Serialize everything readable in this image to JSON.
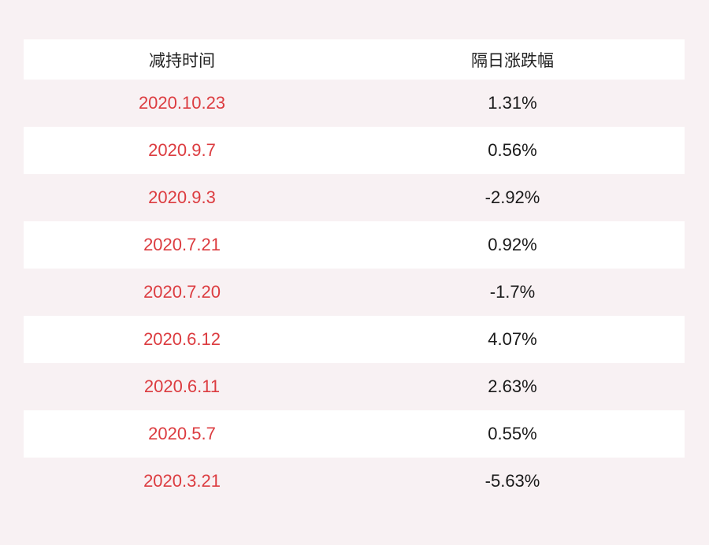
{
  "table": {
    "columns": {
      "date_label": "减持时间",
      "change_label": "隔日涨跌幅"
    },
    "rows": [
      {
        "date": "2020.10.23",
        "change": "1.31%"
      },
      {
        "date": "2020.9.7",
        "change": "0.56%"
      },
      {
        "date": "2020.9.3",
        "change": "-2.92%"
      },
      {
        "date": "2020.7.21",
        "change": "0.92%"
      },
      {
        "date": "2020.7.20",
        "change": "-1.7%"
      },
      {
        "date": "2020.6.12",
        "change": "4.07%"
      },
      {
        "date": "2020.6.11",
        "change": "2.63%"
      },
      {
        "date": "2020.5.7",
        "change": "0.55%"
      },
      {
        "date": "2020.3.21",
        "change": "-5.63%"
      }
    ]
  },
  "colors": {
    "page_background": "#f8f1f3",
    "row_stripe": "#f8f1f3",
    "row_plain": "#ffffff",
    "date_text": "#dc3c40",
    "value_text": "#1a1a1a",
    "header_text": "#222222"
  }
}
